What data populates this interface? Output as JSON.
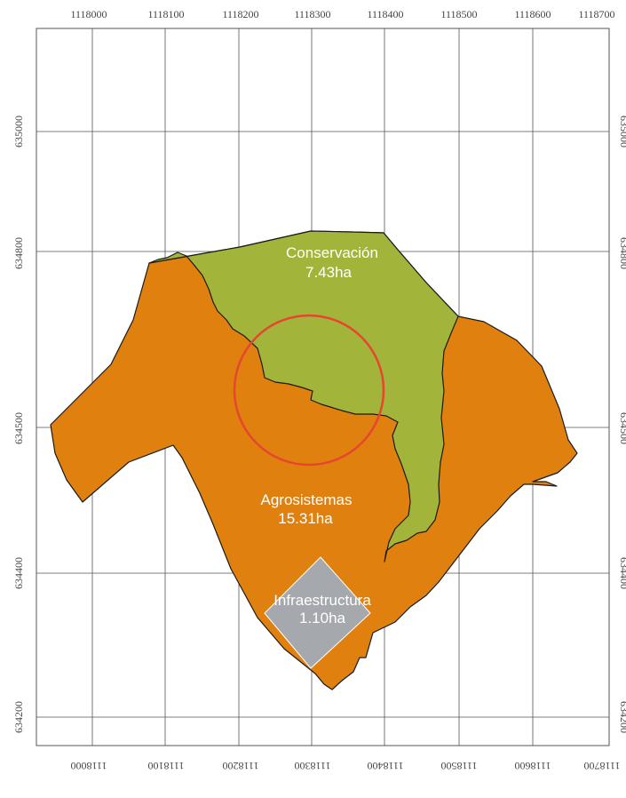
{
  "map": {
    "x_ticks": [
      "1118000",
      "1118100",
      "1118200",
      "1118300",
      "1118400",
      "1118500",
      "1118600",
      "1118700"
    ],
    "y_ticks": [
      "635000",
      "634800",
      "634500",
      "634400",
      "634200"
    ],
    "zones": [
      {
        "id": "conservacion",
        "name": "Conservación",
        "area": "7.43ha",
        "color": "#a3b43b"
      },
      {
        "id": "agrosistemas",
        "name": "Agrosistemas",
        "area": "15.31ha",
        "color": "#e0800e"
      },
      {
        "id": "infraestructura",
        "name": "Infraestructura",
        "area": "1.10ha",
        "color": "#a5a9ad"
      }
    ],
    "marker_color": "#e64630",
    "outline_color": "#1a1a1a",
    "grid_color": "#555555"
  }
}
